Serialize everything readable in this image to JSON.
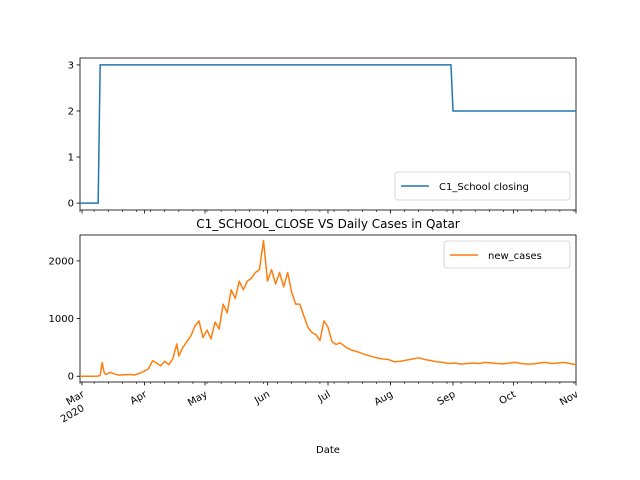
{
  "colors": {
    "series1": "#1f77b4",
    "series2": "#ff7f0e"
  },
  "chart_data": [
    {
      "type": "line",
      "title": "",
      "xlabel": "",
      "ylabel": "",
      "xlim": [
        "2020-02-29",
        "2020-11-01"
      ],
      "ylim": [
        -0.15,
        3.15
      ],
      "yticks": [
        0,
        1,
        2,
        3
      ],
      "legend": "lower-right",
      "grid": false,
      "series": [
        {
          "name": "C1_School closing",
          "points": [
            [
              "2020-02-29",
              0
            ],
            [
              "2020-03-09",
              0
            ],
            [
              "2020-03-10",
              3
            ],
            [
              "2020-08-31",
              3
            ],
            [
              "2020-09-01",
              2
            ],
            [
              "2020-11-01",
              2
            ]
          ]
        }
      ]
    },
    {
      "type": "line",
      "title": "C1_SCHOOL_CLOSE VS Daily Cases in Qatar",
      "xlabel": "Date",
      "ylabel": "",
      "xlim": [
        "2020-02-29",
        "2020-11-01"
      ],
      "ylim": [
        -100,
        2450
      ],
      "yticks": [
        0,
        1000,
        2000
      ],
      "legend": "top-right",
      "grid": false,
      "series": [
        {
          "name": "new_cases",
          "points": [
            [
              "2020-02-29",
              0
            ],
            [
              "2020-03-05",
              0
            ],
            [
              "2020-03-09",
              2
            ],
            [
              "2020-03-10",
              15
            ],
            [
              "2020-03-11",
              238
            ],
            [
              "2020-03-12",
              60
            ],
            [
              "2020-03-13",
              30
            ],
            [
              "2020-03-15",
              70
            ],
            [
              "2020-03-17",
              40
            ],
            [
              "2020-03-19",
              20
            ],
            [
              "2020-03-22",
              25
            ],
            [
              "2020-03-25",
              30
            ],
            [
              "2020-03-27",
              20
            ],
            [
              "2020-03-29",
              45
            ],
            [
              "2020-04-01",
              90
            ],
            [
              "2020-04-03",
              130
            ],
            [
              "2020-04-05",
              270
            ],
            [
              "2020-04-07",
              230
            ],
            [
              "2020-04-09",
              180
            ],
            [
              "2020-04-11",
              260
            ],
            [
              "2020-04-13",
              200
            ],
            [
              "2020-04-15",
              300
            ],
            [
              "2020-04-17",
              560
            ],
            [
              "2020-04-18",
              350
            ],
            [
              "2020-04-20",
              500
            ],
            [
              "2020-04-22",
              600
            ],
            [
              "2020-04-24",
              700
            ],
            [
              "2020-04-26",
              870
            ],
            [
              "2020-04-28",
              960
            ],
            [
              "2020-04-30",
              670
            ],
            [
              "2020-05-02",
              800
            ],
            [
              "2020-05-04",
              650
            ],
            [
              "2020-05-06",
              940
            ],
            [
              "2020-05-08",
              820
            ],
            [
              "2020-05-10",
              1250
            ],
            [
              "2020-05-12",
              1100
            ],
            [
              "2020-05-14",
              1500
            ],
            [
              "2020-05-16",
              1350
            ],
            [
              "2020-05-18",
              1650
            ],
            [
              "2020-05-20",
              1500
            ],
            [
              "2020-05-22",
              1650
            ],
            [
              "2020-05-24",
              1700
            ],
            [
              "2020-05-26",
              1800
            ],
            [
              "2020-05-28",
              1850
            ],
            [
              "2020-05-30",
              2355
            ],
            [
              "2020-06-01",
              1650
            ],
            [
              "2020-06-03",
              1850
            ],
            [
              "2020-06-05",
              1600
            ],
            [
              "2020-06-07",
              1800
            ],
            [
              "2020-06-09",
              1550
            ],
            [
              "2020-06-11",
              1800
            ],
            [
              "2020-06-13",
              1450
            ],
            [
              "2020-06-15",
              1250
            ],
            [
              "2020-06-17",
              1250
            ],
            [
              "2020-06-19",
              1050
            ],
            [
              "2020-06-21",
              850
            ],
            [
              "2020-06-23",
              760
            ],
            [
              "2020-06-25",
              720
            ],
            [
              "2020-06-27",
              620
            ],
            [
              "2020-06-29",
              960
            ],
            [
              "2020-07-01",
              850
            ],
            [
              "2020-07-03",
              600
            ],
            [
              "2020-07-05",
              550
            ],
            [
              "2020-07-07",
              580
            ],
            [
              "2020-07-10",
              500
            ],
            [
              "2020-07-13",
              450
            ],
            [
              "2020-07-16",
              420
            ],
            [
              "2020-07-19",
              380
            ],
            [
              "2020-07-22",
              350
            ],
            [
              "2020-07-25",
              320
            ],
            [
              "2020-07-28",
              300
            ],
            [
              "2020-07-31",
              290
            ],
            [
              "2020-08-03",
              250
            ],
            [
              "2020-08-06",
              260
            ],
            [
              "2020-08-09",
              280
            ],
            [
              "2020-08-12",
              300
            ],
            [
              "2020-08-15",
              320
            ],
            [
              "2020-08-18",
              290
            ],
            [
              "2020-08-21",
              270
            ],
            [
              "2020-08-24",
              250
            ],
            [
              "2020-08-27",
              240
            ],
            [
              "2020-08-30",
              220
            ],
            [
              "2020-09-02",
              230
            ],
            [
              "2020-09-05",
              210
            ],
            [
              "2020-09-08",
              220
            ],
            [
              "2020-09-11",
              230
            ],
            [
              "2020-09-14",
              220
            ],
            [
              "2020-09-17",
              240
            ],
            [
              "2020-09-20",
              230
            ],
            [
              "2020-09-23",
              220
            ],
            [
              "2020-09-26",
              215
            ],
            [
              "2020-09-29",
              230
            ],
            [
              "2020-10-02",
              240
            ],
            [
              "2020-10-05",
              220
            ],
            [
              "2020-10-08",
              210
            ],
            [
              "2020-10-11",
              215
            ],
            [
              "2020-10-14",
              230
            ],
            [
              "2020-10-17",
              240
            ],
            [
              "2020-10-20",
              220
            ],
            [
              "2020-10-23",
              230
            ],
            [
              "2020-10-26",
              240
            ],
            [
              "2020-10-29",
              220
            ],
            [
              "2020-11-01",
              200
            ]
          ]
        }
      ]
    }
  ],
  "xaxis": {
    "tick_labels": [
      {
        "date": "2020-03-01",
        "label": "Mar",
        "sub": "2020"
      },
      {
        "date": "2020-04-01",
        "label": "Apr",
        "sub": ""
      },
      {
        "date": "2020-05-01",
        "label": "May",
        "sub": ""
      },
      {
        "date": "2020-06-01",
        "label": "Jun",
        "sub": ""
      },
      {
        "date": "2020-07-01",
        "label": "Jul",
        "sub": ""
      },
      {
        "date": "2020-08-01",
        "label": "Aug",
        "sub": ""
      },
      {
        "date": "2020-09-01",
        "label": "Sep",
        "sub": ""
      },
      {
        "date": "2020-10-01",
        "label": "Oct",
        "sub": ""
      },
      {
        "date": "2020-11-01",
        "label": "Nov",
        "sub": ""
      }
    ]
  }
}
